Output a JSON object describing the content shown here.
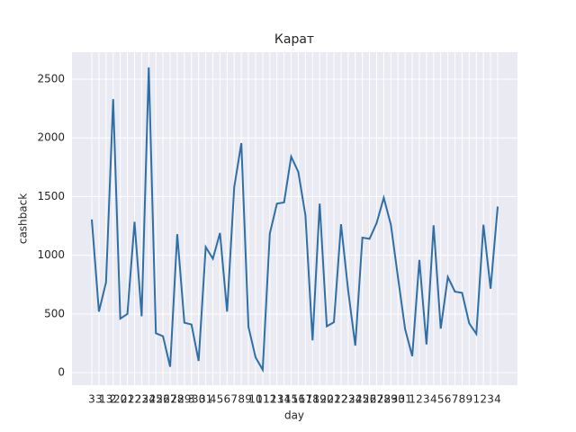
{
  "chart_data": {
    "type": "line",
    "title": "Карат",
    "x_label": "day",
    "y_label": "cashback",
    "categories": [
      "3",
      "3",
      "13",
      "2",
      "20",
      "21",
      "22",
      "23",
      "24",
      "25",
      "26",
      "27",
      "28",
      "29",
      "3",
      "30",
      "31",
      "4",
      "5",
      "6",
      "7",
      "8",
      "9",
      "10",
      "11",
      "12",
      "13",
      "14",
      "15",
      "16",
      "17",
      "18",
      "19",
      "20",
      "21",
      "22",
      "23",
      "24",
      "25",
      "26",
      "27",
      "28",
      "29",
      "30",
      "31",
      "1",
      "2",
      "3",
      "4",
      "5",
      "6",
      "7",
      "8",
      "9",
      "1",
      "2",
      "3",
      "4"
    ],
    "series": [
      {
        "name": "cashback",
        "color": "#2f6fa6",
        "values": [
          1305,
          520,
          770,
          2330,
          460,
          500,
          1285,
          480,
          2600,
          335,
          310,
          50,
          1180,
          425,
          410,
          100,
          1070,
          970,
          1190,
          520,
          1580,
          1955,
          390,
          130,
          25,
          1185,
          1440,
          1450,
          1840,
          1710,
          1340,
          275,
          1440,
          395,
          430,
          1265,
          700,
          230,
          1150,
          1140,
          1275,
          1490,
          1260,
          810,
          370,
          140,
          960,
          240,
          1255,
          375,
          815,
          690,
          680,
          420,
          330,
          1260,
          715,
          1415
        ]
      }
    ],
    "ylim": [
      -107,
      2730
    ],
    "yticks": [
      0,
      500,
      1000,
      1500,
      2000,
      2500
    ],
    "grid": true
  }
}
